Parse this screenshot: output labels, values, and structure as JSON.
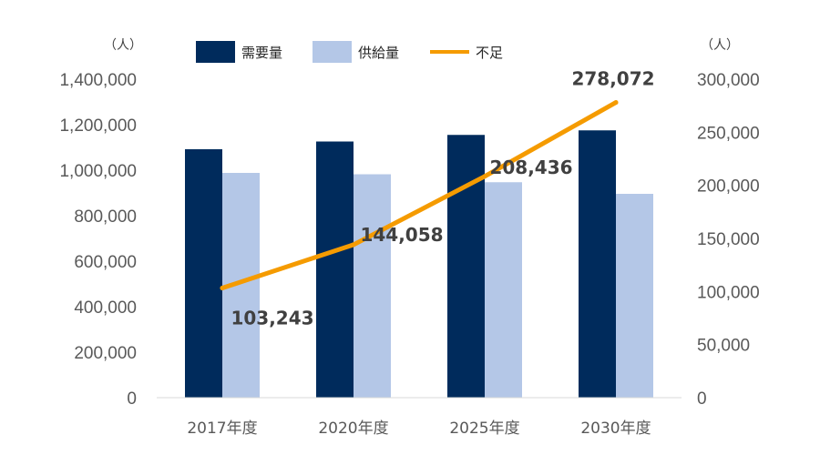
{
  "chart_data": {
    "type": "bar",
    "categories": [
      "2017年度",
      "2020年度",
      "2025年度",
      "2030年度"
    ],
    "series": [
      {
        "name": "需要量",
        "type": "bar",
        "axis": "left",
        "color": "#002b5c",
        "values": [
          1092000,
          1126000,
          1155000,
          1175000
        ]
      },
      {
        "name": "供給量",
        "type": "bar",
        "axis": "left",
        "color": "#b4c7e7",
        "values": [
          988000,
          982000,
          947000,
          896000
        ]
      },
      {
        "name": "不足",
        "type": "line",
        "axis": "right",
        "color": "#f59b00",
        "values": [
          103243,
          144058,
          208436,
          278072
        ],
        "data_labels": [
          "103,243",
          "144,058",
          "208,436",
          "278,072"
        ]
      }
    ],
    "y_left": {
      "unit": "（人）",
      "ylim": [
        0,
        1400000
      ],
      "ticks": [
        "0",
        "200,000",
        "400,000",
        "600,000",
        "800,000",
        "1,000,000",
        "1,200,000",
        "1,400,000"
      ]
    },
    "y_right": {
      "unit": "（人）",
      "ylim": [
        0,
        300000
      ],
      "ticks": [
        "0",
        "50,000",
        "100,000",
        "150,000",
        "200,000",
        "250,000",
        "300,000"
      ]
    },
    "legend": {
      "position": "top"
    },
    "grid": false
  }
}
